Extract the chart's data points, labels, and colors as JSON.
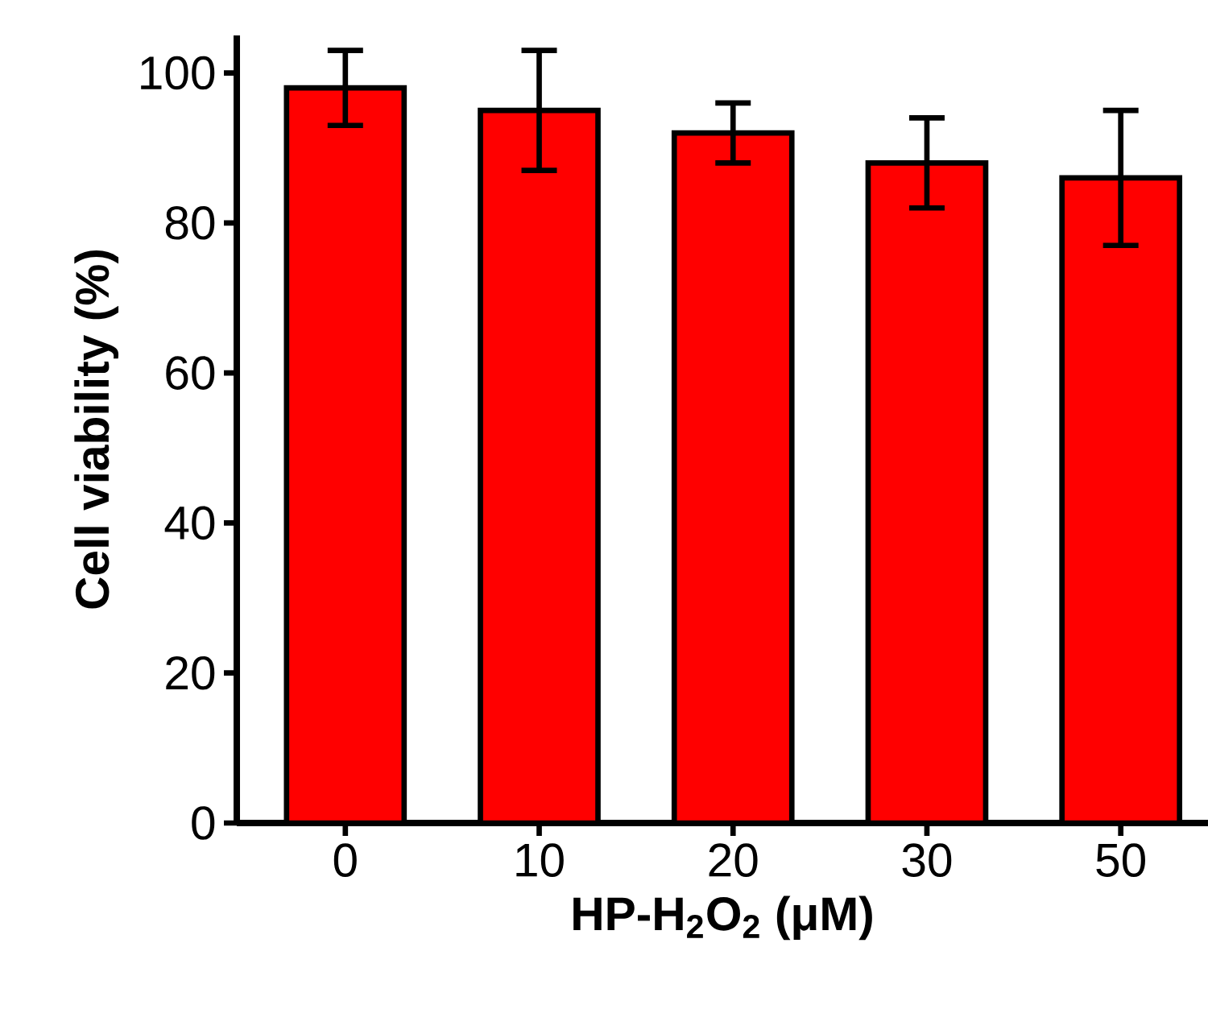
{
  "chart_data": {
    "type": "bar",
    "xlabel": "HP-H$_{2}$O$_{2}$ (μM)",
    "ylabel": "Cell viability (%)",
    "categories": [
      "0",
      "10",
      "20",
      "30",
      "50"
    ],
    "values": [
      98,
      95,
      92,
      88,
      86
    ],
    "errors": [
      5,
      8,
      4,
      6,
      9
    ],
    "color": "#ff0000",
    "ylim": [
      0,
      105
    ],
    "yticks": [
      0,
      20,
      40,
      60,
      80,
      100
    ]
  }
}
